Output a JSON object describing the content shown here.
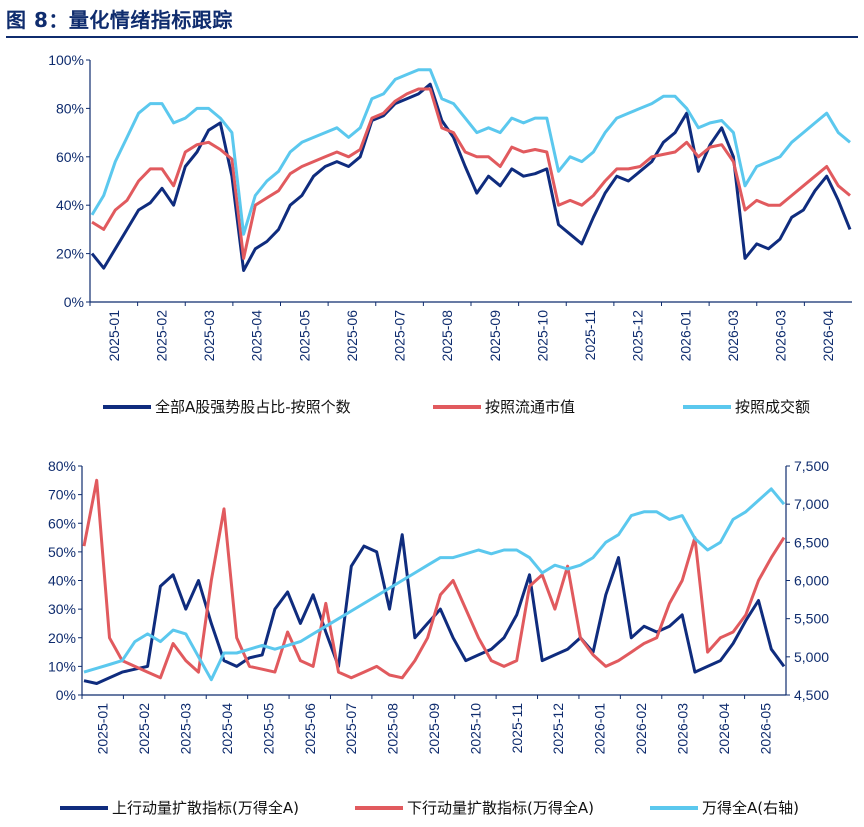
{
  "figure_title": "图 8：量化情绪指标跟踪",
  "chart_data": [
    {
      "type": "line",
      "yaxis_ticks": [
        "0%",
        "20%",
        "40%",
        "60%",
        "80%",
        "100%"
      ],
      "ylim": [
        0,
        100
      ],
      "x_labels": [
        "2025-01",
        "2025-02",
        "2025-03",
        "2025-04",
        "2025-05",
        "2025-06",
        "2025-07",
        "2025-08",
        "2025-09",
        "2025-10",
        "2025-11",
        "2025-12",
        "2026-01",
        "2026-03",
        "2026-03",
        "2026-04"
      ],
      "grid": false,
      "legend_position": "bottom",
      "series": [
        {
          "name": "全部A股强势股占比-按照个数",
          "color": "#0f2c7e",
          "values": [
            20,
            14,
            22,
            30,
            38,
            41,
            47,
            40,
            56,
            62,
            71,
            74,
            52,
            13,
            22,
            25,
            30,
            40,
            44,
            52,
            56,
            58,
            56,
            60,
            75,
            77,
            82,
            84,
            86,
            90,
            75,
            68,
            56,
            45,
            52,
            48,
            55,
            52,
            53,
            55,
            32,
            28,
            24,
            35,
            45,
            52,
            50,
            54,
            58,
            66,
            70,
            78,
            54,
            65,
            72,
            60,
            18,
            24,
            22,
            26,
            35,
            38,
            46,
            52,
            42,
            30
          ]
        },
        {
          "name": "按照流通市值",
          "color": "#e15a5e",
          "values": [
            33,
            30,
            38,
            42,
            50,
            55,
            55,
            48,
            62,
            65,
            66,
            63,
            59,
            18,
            40,
            43,
            46,
            53,
            56,
            58,
            60,
            62,
            60,
            63,
            76,
            78,
            83,
            86,
            88,
            88,
            72,
            70,
            62,
            60,
            60,
            56,
            64,
            62,
            63,
            62,
            40,
            42,
            40,
            44,
            50,
            55,
            55,
            56,
            60,
            61,
            62,
            66,
            60,
            64,
            65,
            58,
            38,
            42,
            40,
            40,
            44,
            48,
            52,
            56,
            48,
            44
          ]
        },
        {
          "name": "按照成交额",
          "color": "#5bc8ee",
          "values": [
            36,
            44,
            58,
            68,
            78,
            82,
            82,
            74,
            76,
            80,
            80,
            76,
            70,
            28,
            44,
            50,
            54,
            62,
            66,
            68,
            70,
            72,
            68,
            72,
            84,
            86,
            92,
            94,
            96,
            96,
            84,
            82,
            76,
            70,
            72,
            70,
            76,
            74,
            76,
            76,
            54,
            60,
            58,
            62,
            70,
            76,
            78,
            80,
            82,
            85,
            85,
            80,
            72,
            74,
            75,
            70,
            48,
            56,
            58,
            60,
            66,
            70,
            74,
            78,
            70,
            66
          ]
        }
      ]
    },
    {
      "type": "line",
      "yaxis_left_ticks": [
        "0%",
        "10%",
        "20%",
        "30%",
        "40%",
        "50%",
        "60%",
        "70%",
        "80%"
      ],
      "yaxis_right_ticks": [
        "4,500",
        "5,000",
        "5,500",
        "6,000",
        "6,500",
        "7,000",
        "7,500"
      ],
      "ylim_left": [
        0,
        80
      ],
      "ylim_right": [
        4500,
        7500
      ],
      "x_labels": [
        "2025-01",
        "2025-02",
        "2025-03",
        "2025-04",
        "2025-05",
        "2025-06",
        "2025-07",
        "2025-08",
        "2025-09",
        "2025-10",
        "2025-11",
        "2025-12",
        "2026-01",
        "2026-02",
        "2026-03",
        "2026-04",
        "2026-05"
      ],
      "grid": false,
      "legend_position": "bottom",
      "series": [
        {
          "name": "上行动量扩散指标(万得全A)",
          "color": "#0f2c7e",
          "axis": "left",
          "values": [
            5,
            4,
            6,
            8,
            9,
            10,
            38,
            42,
            30,
            40,
            25,
            12,
            10,
            13,
            14,
            30,
            36,
            25,
            35,
            22,
            10,
            45,
            52,
            50,
            30,
            56,
            20,
            25,
            30,
            20,
            12,
            14,
            16,
            20,
            28,
            42,
            12,
            14,
            16,
            20,
            15,
            35,
            48,
            20,
            24,
            22,
            24,
            28,
            8,
            10,
            12,
            18,
            26,
            33,
            16,
            10
          ]
        },
        {
          "name": "下行动量扩散指标(万得全A)",
          "color": "#e15a5e",
          "axis": "left",
          "values": [
            52,
            75,
            20,
            12,
            10,
            8,
            6,
            18,
            12,
            8,
            40,
            65,
            20,
            10,
            9,
            8,
            22,
            12,
            10,
            32,
            8,
            6,
            8,
            10,
            7,
            6,
            12,
            20,
            35,
            40,
            30,
            20,
            12,
            10,
            12,
            38,
            42,
            30,
            45,
            20,
            14,
            10,
            12,
            15,
            18,
            20,
            32,
            40,
            55,
            15,
            20,
            22,
            28,
            40,
            48,
            55
          ]
        },
        {
          "name": "万得全A(右轴)",
          "color": "#5bc8ee",
          "axis": "right",
          "values": [
            4800,
            4850,
            4900,
            4950,
            5200,
            5300,
            5200,
            5350,
            5300,
            5000,
            4700,
            5050,
            5050,
            5100,
            5150,
            5100,
            5150,
            5200,
            5300,
            5400,
            5500,
            5600,
            5700,
            5800,
            5900,
            6000,
            6100,
            6200,
            6300,
            6300,
            6350,
            6400,
            6350,
            6400,
            6400,
            6300,
            6100,
            6200,
            6150,
            6200,
            6300,
            6500,
            6600,
            6850,
            6900,
            6900,
            6800,
            6850,
            6550,
            6400,
            6500,
            6800,
            6900,
            7050,
            7200,
            7000
          ]
        }
      ]
    }
  ]
}
